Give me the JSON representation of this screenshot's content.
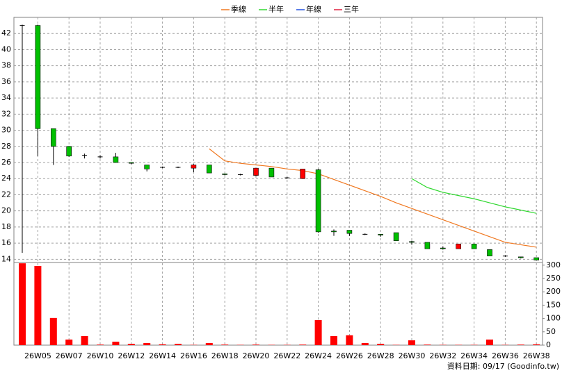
{
  "chart_data": {
    "type": "candlestick",
    "categories": [
      null,
      "26W05",
      null,
      "26W07",
      null,
      "26W10",
      null,
      "26W12",
      null,
      "26W14",
      null,
      "26W16",
      null,
      "26W18",
      null,
      "26W20",
      null,
      "26W22",
      null,
      "26W24",
      null,
      "26W26",
      null,
      "26W28",
      null,
      "26W30",
      null,
      "26W32",
      null,
      "26W34",
      null,
      "26W36",
      null,
      "26W38"
    ],
    "open": [
      43.0,
      43.0,
      30.2,
      28.0,
      26.9,
      26.7,
      26.7,
      26.0,
      25.7,
      25.4,
      25.4,
      25.3,
      25.7,
      24.6,
      24.5,
      24.4,
      25.3,
      24.1,
      24.0,
      25.1,
      17.5,
      17.6,
      17.1,
      17.1,
      17.3,
      16.2,
      16.1,
      15.4,
      15.3,
      15.9,
      15.2,
      14.4,
      14.3,
      14.2
    ],
    "high": [
      43.1,
      43.1,
      30.2,
      28.0,
      27.1,
      26.9,
      27.2,
      26.0,
      25.7,
      25.5,
      25.5,
      25.8,
      25.7,
      24.6,
      24.6,
      25.3,
      25.3,
      24.2,
      25.2,
      25.2,
      17.7,
      17.6,
      17.2,
      17.1,
      17.3,
      16.3,
      16.1,
      15.6,
      15.9,
      15.9,
      15.2,
      14.5,
      14.3,
      14.2
    ],
    "low": [
      14.8,
      26.8,
      25.7,
      26.7,
      26.5,
      26.5,
      26.0,
      25.8,
      24.9,
      25.3,
      25.3,
      24.8,
      24.7,
      24.4,
      24.4,
      24.3,
      24.2,
      24.0,
      24.0,
      17.3,
      16.9,
      16.9,
      17.0,
      16.8,
      16.3,
      15.8,
      15.3,
      15.2,
      15.3,
      15.3,
      14.4,
      14.3,
      14.1,
      13.9
    ],
    "close": [
      43.0,
      30.2,
      28.0,
      26.8,
      26.9,
      26.7,
      26.0,
      25.9,
      25.2,
      25.4,
      25.4,
      25.7,
      24.7,
      24.5,
      24.5,
      25.3,
      24.2,
      24.1,
      25.2,
      17.4,
      17.4,
      17.2,
      17.1,
      17.0,
      16.3,
      16.1,
      15.3,
      15.3,
      15.9,
      15.3,
      14.4,
      14.4,
      14.2,
      13.9
    ],
    "up_color": "#ff0000",
    "down_color": "#00c000",
    "flat_color": "#000000",
    "ylim": [
      13.6,
      44
    ],
    "yticks": [
      14,
      16,
      18,
      20,
      22,
      24,
      26,
      28,
      30,
      32,
      34,
      36,
      38,
      40,
      42
    ],
    "grid": true,
    "series": [
      {
        "name": "季線",
        "color": "#f07820",
        "values": [
          null,
          null,
          null,
          null,
          null,
          null,
          null,
          null,
          null,
          null,
          null,
          null,
          27.7,
          26.2,
          25.9,
          25.7,
          25.5,
          25.2,
          25.0,
          24.6,
          23.9,
          23.2,
          22.5,
          21.8,
          21.0,
          20.3,
          19.6,
          18.9,
          18.2,
          17.5,
          16.8,
          16.1,
          15.8,
          15.5
        ]
      },
      {
        "name": "半年",
        "color": "#30d830",
        "values": [
          null,
          null,
          null,
          null,
          null,
          null,
          null,
          null,
          null,
          null,
          null,
          null,
          null,
          null,
          null,
          null,
          null,
          null,
          null,
          null,
          null,
          null,
          null,
          null,
          null,
          24.0,
          22.9,
          22.3,
          21.9,
          21.5,
          21.0,
          20.5,
          20.1,
          19.7
        ]
      },
      {
        "name": "年線",
        "color": "#2050e0"
      },
      {
        "name": "三年",
        "color": "#e02040"
      }
    ],
    "volume": {
      "values": [
        307,
        297,
        102,
        21,
        34,
        2,
        13,
        5,
        8,
        3,
        5,
        1,
        8,
        2,
        1,
        2,
        1,
        1,
        2,
        94,
        34,
        37,
        8,
        5,
        1,
        18,
        2,
        1,
        1,
        1,
        21,
        1,
        2,
        3
      ],
      "color": "#ff0000",
      "ylim": [
        0,
        310
      ],
      "yticks": [
        0,
        50,
        100,
        150,
        200,
        250,
        300
      ]
    },
    "footer": "資料日期: 09/17  (Goodinfo.tw)"
  }
}
